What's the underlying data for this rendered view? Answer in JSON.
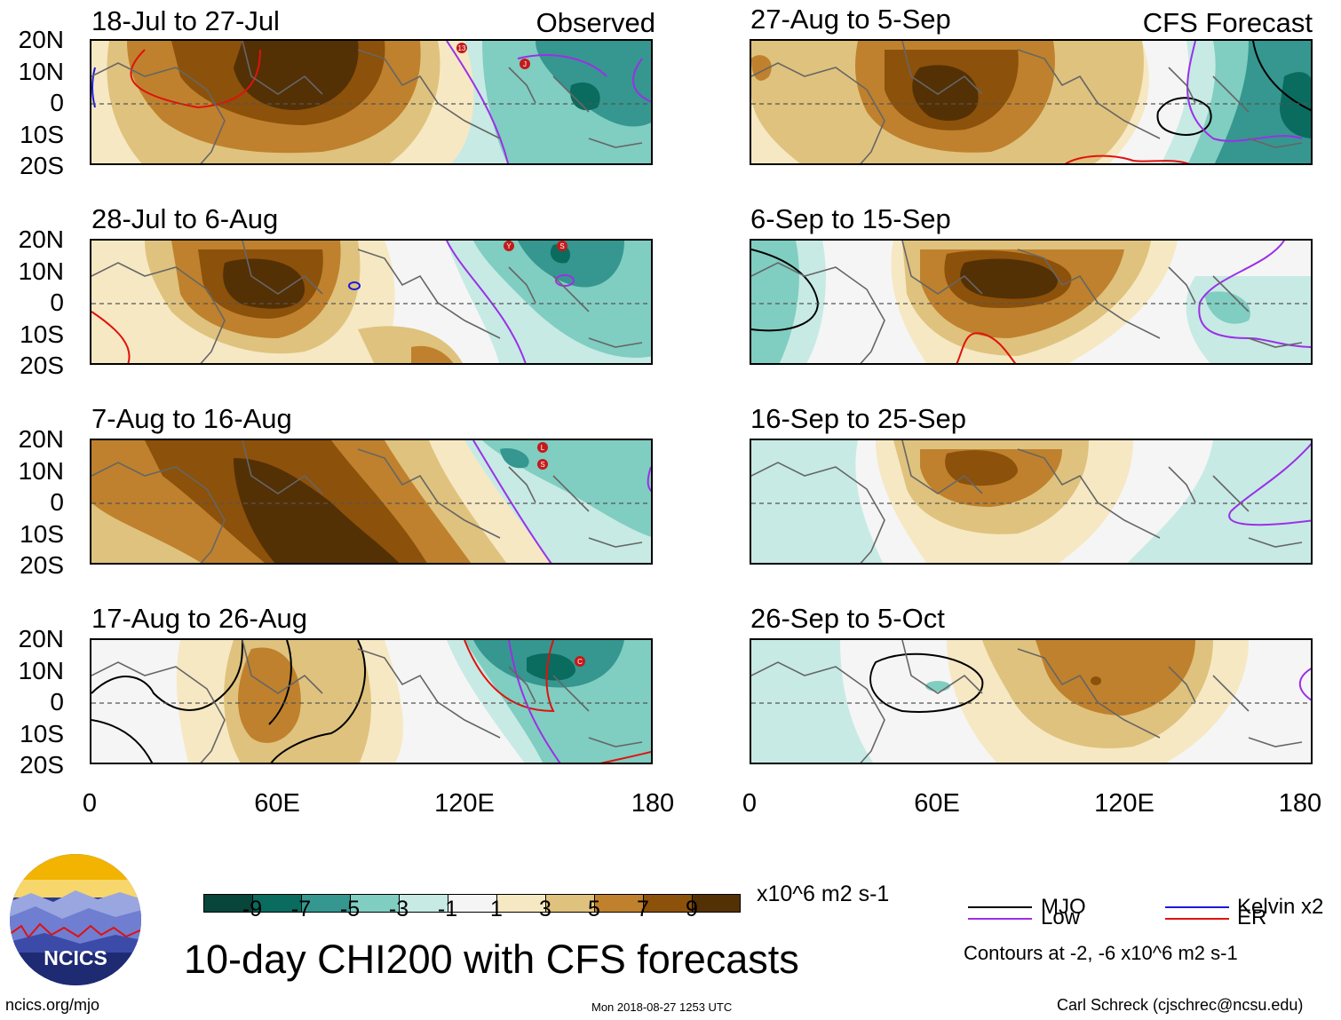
{
  "panels": [
    {
      "title": "18-Jul to 27-Jul",
      "tag": "Observed"
    },
    {
      "title": "28-Jul to 6-Aug",
      "tag": ""
    },
    {
      "title": "7-Aug to 16-Aug",
      "tag": ""
    },
    {
      "title": "17-Aug to 26-Aug",
      "tag": ""
    },
    {
      "title": "27-Aug to 5-Sep",
      "tag": "CFS Forecast"
    },
    {
      "title": "6-Sep to 15-Sep",
      "tag": ""
    },
    {
      "title": "16-Sep to 25-Sep",
      "tag": ""
    },
    {
      "title": "26-Sep to 5-Oct",
      "tag": ""
    }
  ],
  "axes": {
    "lat_labels": [
      "20N",
      "10N",
      "0",
      "10S",
      "20S"
    ],
    "lon_labels": [
      "0",
      "60E",
      "120E",
      "180"
    ]
  },
  "colorbar": {
    "labels": [
      "-9",
      "-7",
      "-5",
      "-3",
      "-1",
      "1",
      "3",
      "5",
      "7",
      "9"
    ],
    "colors": [
      "#08453a",
      "#0a6b5f",
      "#35978f",
      "#80cdc1",
      "#c7eae5",
      "#f5f5f5",
      "#f6e8c3",
      "#dfc27d",
      "#bf812d",
      "#8c510a",
      "#543005"
    ],
    "units": "x10^6 m2 s-1"
  },
  "legend": {
    "items": [
      {
        "label": "MJO",
        "color": "#000000"
      },
      {
        "label": "Kelvin x2",
        "color": "#1a1adc"
      },
      {
        "label": "Low",
        "color": "#9b30e6"
      },
      {
        "label": "ER",
        "color": "#e0120c"
      }
    ],
    "note": "Contours at -2, -6 x10^6 m2 s-1"
  },
  "title": "10-day CHI200 with CFS forecasts",
  "logo": {
    "text": "NCICS"
  },
  "footer": {
    "left": "ncics.org/mjo",
    "center": "Mon 2018-08-27 1253 UTC",
    "right": "Carl Schreck (cjschrec@ncsu.edu)"
  },
  "storms": [
    {
      "panel": 0,
      "label": "13"
    },
    {
      "panel": 0,
      "label": "J"
    },
    {
      "panel": 1,
      "label": "Y"
    },
    {
      "panel": 1,
      "label": "S"
    },
    {
      "panel": 2,
      "label": "L"
    },
    {
      "panel": 2,
      "label": "S"
    },
    {
      "panel": 3,
      "label": "C"
    }
  ]
}
